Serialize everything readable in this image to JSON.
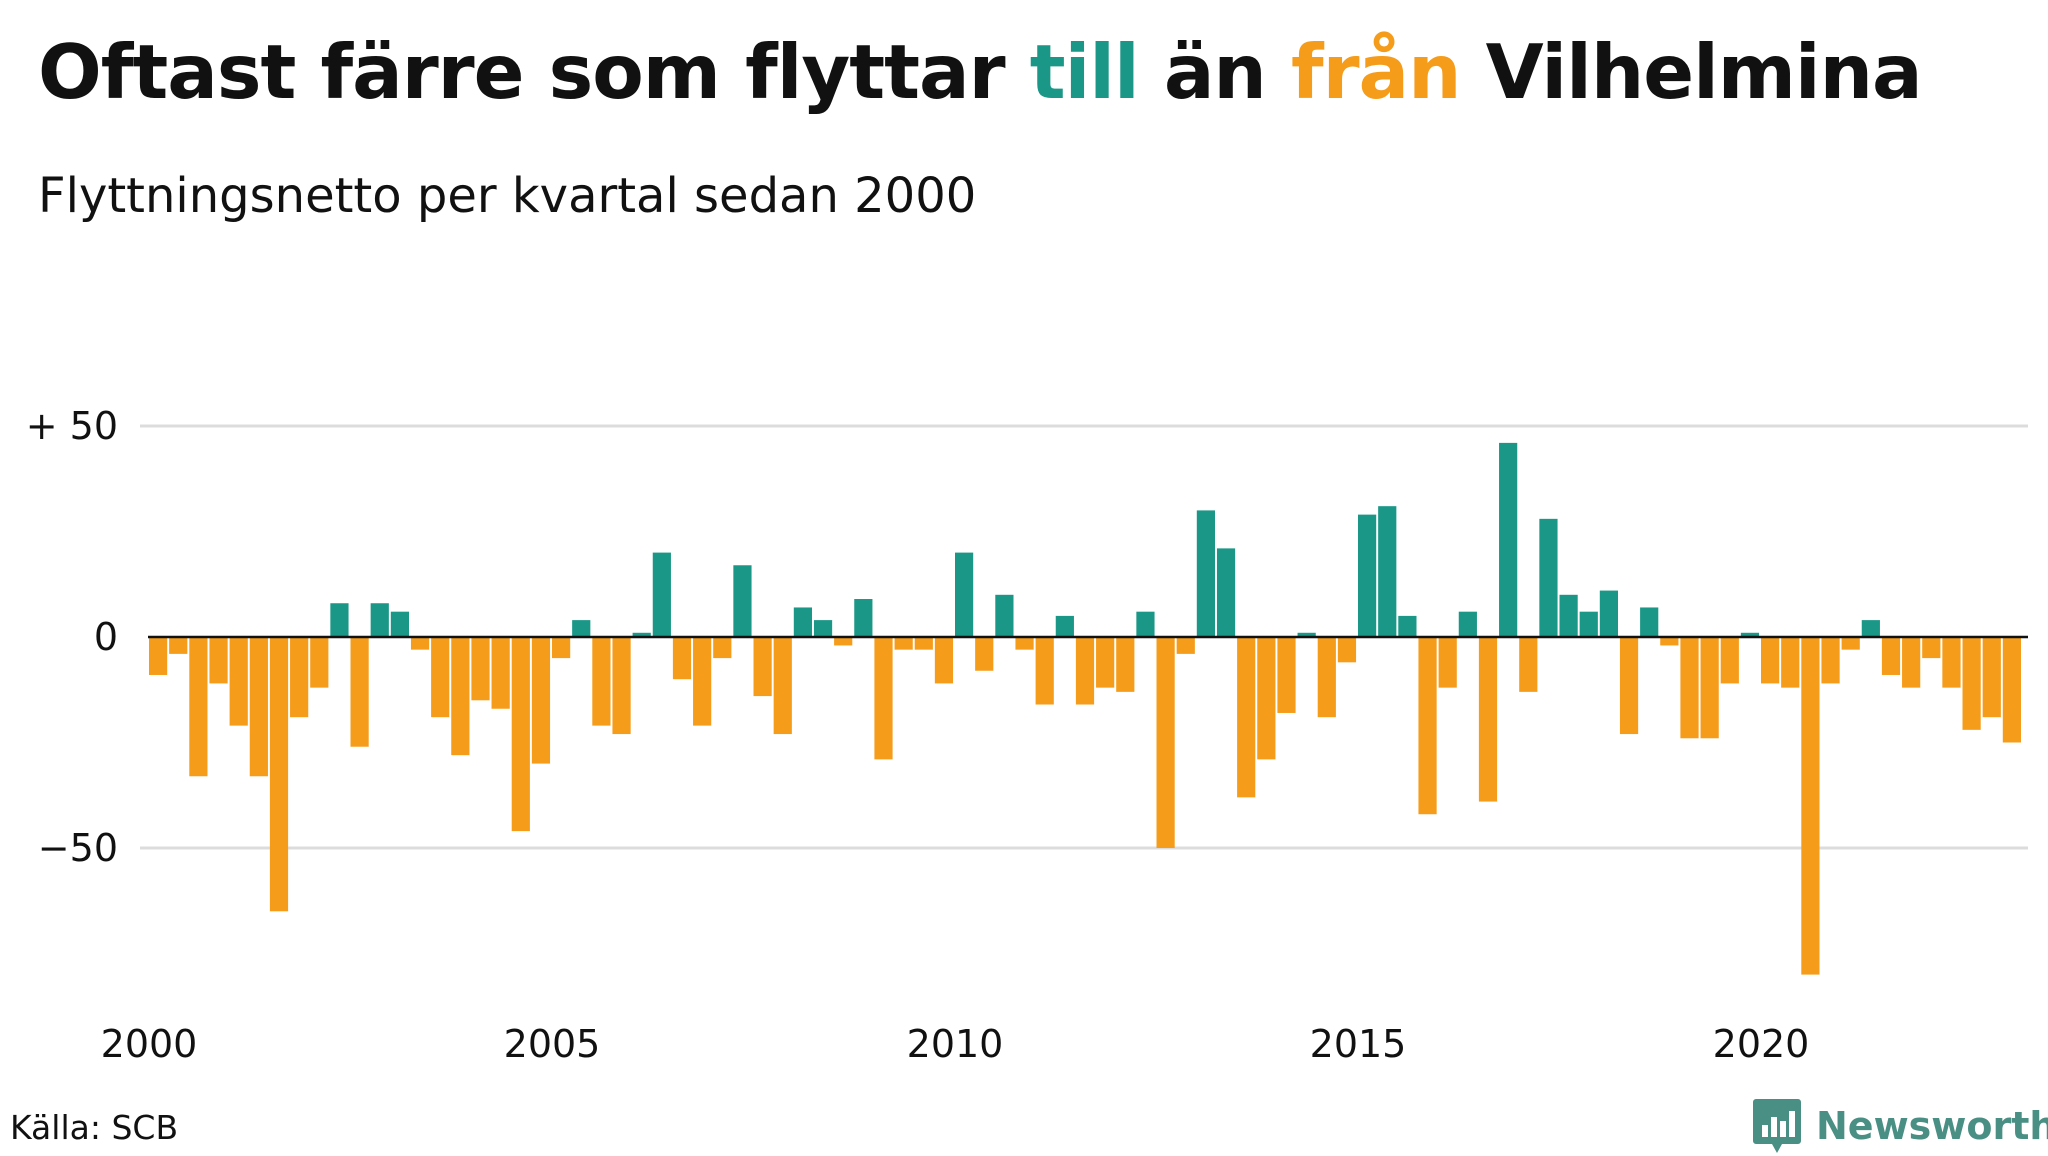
{
  "title": {
    "part1": "Oftast färre som flyttar ",
    "word_till": "till",
    "part2": " än ",
    "word_fran": "från",
    "part3": " Vilhelmina"
  },
  "subtitle": "Flyttningsnetto per kvartal sedan 2000",
  "source": "Källa: SCB",
  "logo": {
    "text": "Newsworthy",
    "icon": "bar-chart-badge-icon"
  },
  "colors": {
    "positive": "#1a9787",
    "negative": "#f59c1b",
    "grid": "#dcdcdc",
    "zero_line": "#111111",
    "logo": "#4a8f83"
  },
  "chart_data": {
    "type": "bar",
    "title": "Oftast färre som flyttar till än från Vilhelmina",
    "subtitle": "Flyttningsnetto per kvartal sedan 2000",
    "xlabel": "",
    "ylabel": "",
    "x_start": "2000 Q1",
    "x_step": "quarter",
    "ylim": [
      -85,
      60
    ],
    "yticks": [
      {
        "value": 50,
        "label": "+ 50"
      },
      {
        "value": 0,
        "label": "0"
      },
      {
        "value": -50,
        "label": "−50"
      }
    ],
    "xticks": [
      "2000",
      "2005",
      "2010",
      "2015",
      "2020"
    ],
    "grid": true,
    "legend": "none (colors explained in title: teal = till, orange = från)",
    "values": [
      -9,
      -4,
      -33,
      -11,
      -21,
      -33,
      -65,
      -19,
      -12,
      8,
      -26,
      8,
      6,
      -3,
      -19,
      -28,
      -15,
      -17,
      -46,
      -30,
      -5,
      4,
      -21,
      -23,
      1,
      20,
      -10,
      -21,
      -5,
      17,
      -14,
      -23,
      7,
      4,
      -2,
      9,
      -29,
      -3,
      -3,
      -11,
      20,
      -8,
      10,
      -3,
      -16,
      5,
      -16,
      -12,
      -13,
      6,
      -50,
      -4,
      30,
      21,
      -38,
      -29,
      -18,
      1,
      -19,
      -6,
      29,
      31,
      5,
      -42,
      -12,
      6,
      -39,
      46,
      -13,
      28,
      10,
      6,
      11,
      -23,
      7,
      -2,
      -24,
      -24,
      -11,
      1,
      -11,
      -12,
      -80,
      -11,
      -3,
      4,
      -9,
      -12,
      -5,
      -12,
      -22,
      -19,
      -25
    ]
  }
}
